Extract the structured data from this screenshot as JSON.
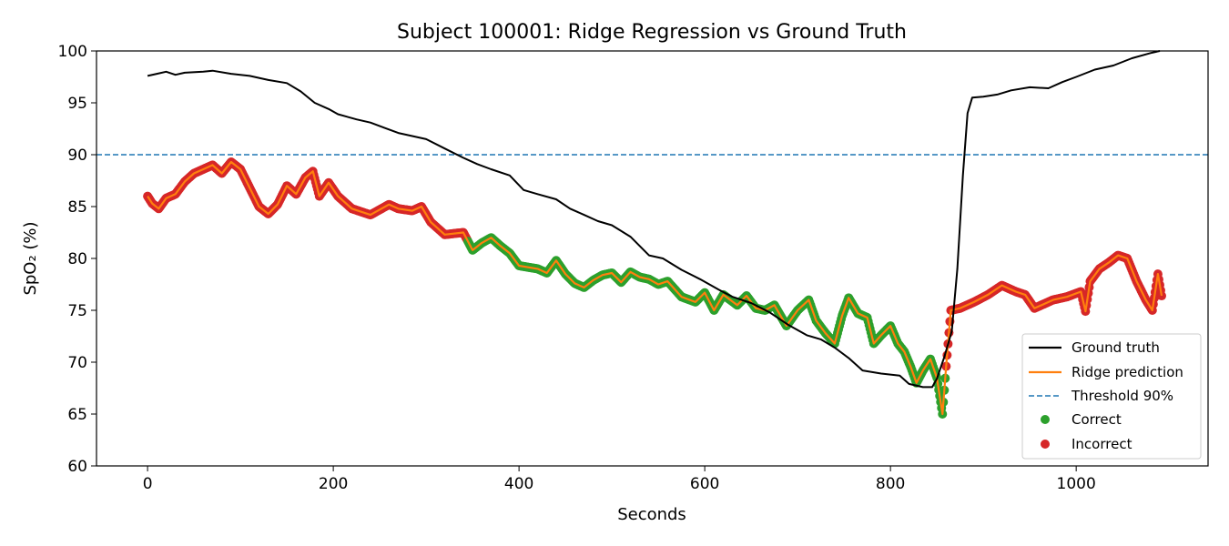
{
  "chart_data": {
    "type": "line",
    "title": "Subject 100001: Ridge Regression vs Ground Truth",
    "xlabel": "Seconds",
    "ylabel": "SpO₂ (%)",
    "xlim": [
      -55,
      1142
    ],
    "ylim": [
      60,
      100
    ],
    "xticks": [
      0,
      200,
      400,
      600,
      800,
      1000
    ],
    "yticks": [
      60,
      65,
      70,
      75,
      80,
      85,
      90,
      95,
      100
    ],
    "grid": false,
    "legend_position": "bottom-right",
    "threshold": {
      "name": "Threshold 90%",
      "value": 90,
      "color": "#1f77b4"
    },
    "series": [
      {
        "name": "Ground truth",
        "color": "#000000",
        "points": [
          [
            0,
            97.6
          ],
          [
            10,
            97.8
          ],
          [
            20,
            98.0
          ],
          [
            30,
            97.7
          ],
          [
            40,
            97.9
          ],
          [
            60,
            98.0
          ],
          [
            70,
            98.1
          ],
          [
            90,
            97.8
          ],
          [
            110,
            97.6
          ],
          [
            130,
            97.2
          ],
          [
            150,
            96.9
          ],
          [
            165,
            96.1
          ],
          [
            180,
            95.0
          ],
          [
            195,
            94.4
          ],
          [
            205,
            93.9
          ],
          [
            225,
            93.4
          ],
          [
            240,
            93.1
          ],
          [
            255,
            92.6
          ],
          [
            270,
            92.1
          ],
          [
            285,
            91.8
          ],
          [
            300,
            91.5
          ],
          [
            320,
            90.6
          ],
          [
            340,
            89.7
          ],
          [
            355,
            89.1
          ],
          [
            370,
            88.6
          ],
          [
            390,
            88.0
          ],
          [
            405,
            86.6
          ],
          [
            420,
            86.2
          ],
          [
            440,
            85.7
          ],
          [
            455,
            84.8
          ],
          [
            470,
            84.2
          ],
          [
            485,
            83.6
          ],
          [
            500,
            83.2
          ],
          [
            520,
            82.1
          ],
          [
            540,
            80.3
          ],
          [
            555,
            80.0
          ],
          [
            575,
            78.9
          ],
          [
            595,
            78.0
          ],
          [
            615,
            77.0
          ],
          [
            630,
            76.3
          ],
          [
            650,
            75.7
          ],
          [
            670,
            74.8
          ],
          [
            690,
            73.6
          ],
          [
            710,
            72.6
          ],
          [
            725,
            72.2
          ],
          [
            740,
            71.4
          ],
          [
            755,
            70.4
          ],
          [
            770,
            69.2
          ],
          [
            790,
            68.9
          ],
          [
            810,
            68.7
          ],
          [
            820,
            67.9
          ],
          [
            835,
            67.6
          ],
          [
            845,
            67.6
          ],
          [
            850,
            68.4
          ],
          [
            858,
            70.5
          ],
          [
            866,
            73.0
          ],
          [
            872,
            79.0
          ],
          [
            878,
            88.0
          ],
          [
            883,
            94.0
          ],
          [
            888,
            95.5
          ],
          [
            900,
            95.6
          ],
          [
            915,
            95.8
          ],
          [
            930,
            96.2
          ],
          [
            950,
            96.5
          ],
          [
            970,
            96.4
          ],
          [
            985,
            97.0
          ],
          [
            1000,
            97.5
          ],
          [
            1020,
            98.2
          ],
          [
            1040,
            98.6
          ],
          [
            1060,
            99.3
          ],
          [
            1080,
            99.8
          ],
          [
            1090,
            100.0
          ]
        ]
      },
      {
        "name": "Ridge prediction",
        "color": "#ff7f0e",
        "points": [
          [
            0,
            86.0
          ],
          [
            5,
            85.3
          ],
          [
            12,
            84.8
          ],
          [
            20,
            85.8
          ],
          [
            30,
            86.2
          ],
          [
            40,
            87.4
          ],
          [
            50,
            88.2
          ],
          [
            60,
            88.6
          ],
          [
            70,
            89.0
          ],
          [
            80,
            88.2
          ],
          [
            90,
            89.3
          ],
          [
            100,
            88.6
          ],
          [
            110,
            86.8
          ],
          [
            120,
            85.0
          ],
          [
            130,
            84.3
          ],
          [
            140,
            85.2
          ],
          [
            150,
            87.0
          ],
          [
            160,
            86.2
          ],
          [
            170,
            87.8
          ],
          [
            178,
            88.4
          ],
          [
            185,
            86.0
          ],
          [
            195,
            87.3
          ],
          [
            205,
            86.0
          ],
          [
            220,
            84.8
          ],
          [
            240,
            84.2
          ],
          [
            260,
            85.2
          ],
          [
            270,
            84.8
          ],
          [
            285,
            84.6
          ],
          [
            295,
            85.0
          ],
          [
            305,
            83.5
          ],
          [
            320,
            82.3
          ],
          [
            340,
            82.5
          ],
          [
            350,
            80.8
          ],
          [
            360,
            81.5
          ],
          [
            370,
            82.0
          ],
          [
            380,
            81.2
          ],
          [
            390,
            80.5
          ],
          [
            400,
            79.3
          ],
          [
            420,
            79.0
          ],
          [
            430,
            78.6
          ],
          [
            440,
            79.8
          ],
          [
            450,
            78.5
          ],
          [
            460,
            77.6
          ],
          [
            470,
            77.2
          ],
          [
            480,
            77.9
          ],
          [
            490,
            78.4
          ],
          [
            500,
            78.6
          ],
          [
            510,
            77.7
          ],
          [
            520,
            78.7
          ],
          [
            530,
            78.2
          ],
          [
            540,
            78.0
          ],
          [
            550,
            77.5
          ],
          [
            560,
            77.8
          ],
          [
            575,
            76.3
          ],
          [
            590,
            75.8
          ],
          [
            600,
            76.7
          ],
          [
            610,
            75.0
          ],
          [
            620,
            76.5
          ],
          [
            635,
            75.5
          ],
          [
            645,
            76.4
          ],
          [
            655,
            75.2
          ],
          [
            665,
            75.0
          ],
          [
            675,
            75.5
          ],
          [
            688,
            73.5
          ],
          [
            700,
            75.0
          ],
          [
            712,
            76.0
          ],
          [
            720,
            74.0
          ],
          [
            730,
            72.8
          ],
          [
            740,
            71.8
          ],
          [
            748,
            74.5
          ],
          [
            755,
            76.2
          ],
          [
            765,
            74.7
          ],
          [
            775,
            74.3
          ],
          [
            782,
            71.8
          ],
          [
            790,
            72.6
          ],
          [
            800,
            73.5
          ],
          [
            808,
            71.8
          ],
          [
            815,
            71.0
          ],
          [
            822,
            69.5
          ],
          [
            828,
            68.0
          ],
          [
            835,
            69.2
          ],
          [
            843,
            70.3
          ],
          [
            850,
            68.5
          ],
          [
            856,
            65.0
          ],
          [
            860,
            69.6
          ],
          [
            865,
            75.0
          ],
          [
            875,
            75.2
          ],
          [
            890,
            75.8
          ],
          [
            905,
            76.5
          ],
          [
            920,
            77.4
          ],
          [
            935,
            76.8
          ],
          [
            945,
            76.5
          ],
          [
            955,
            75.2
          ],
          [
            965,
            75.6
          ],
          [
            975,
            76.0
          ],
          [
            990,
            76.3
          ],
          [
            1005,
            76.8
          ],
          [
            1010,
            74.9
          ],
          [
            1015,
            77.8
          ],
          [
            1025,
            79.0
          ],
          [
            1035,
            79.6
          ],
          [
            1045,
            80.3
          ],
          [
            1055,
            80.0
          ],
          [
            1065,
            77.8
          ],
          [
            1075,
            76.0
          ],
          [
            1082,
            75.0
          ],
          [
            1088,
            78.5
          ],
          [
            1092,
            76.4
          ]
        ]
      }
    ],
    "classification": [
      {
        "name": "Correct",
        "color": "#2ca02c",
        "x_range": [
          345,
          860
        ]
      },
      {
        "name": "Incorrect",
        "color": "#d62728",
        "x_ranges": [
          [
            0,
            345
          ],
          [
            860,
            1092
          ]
        ]
      }
    ]
  }
}
